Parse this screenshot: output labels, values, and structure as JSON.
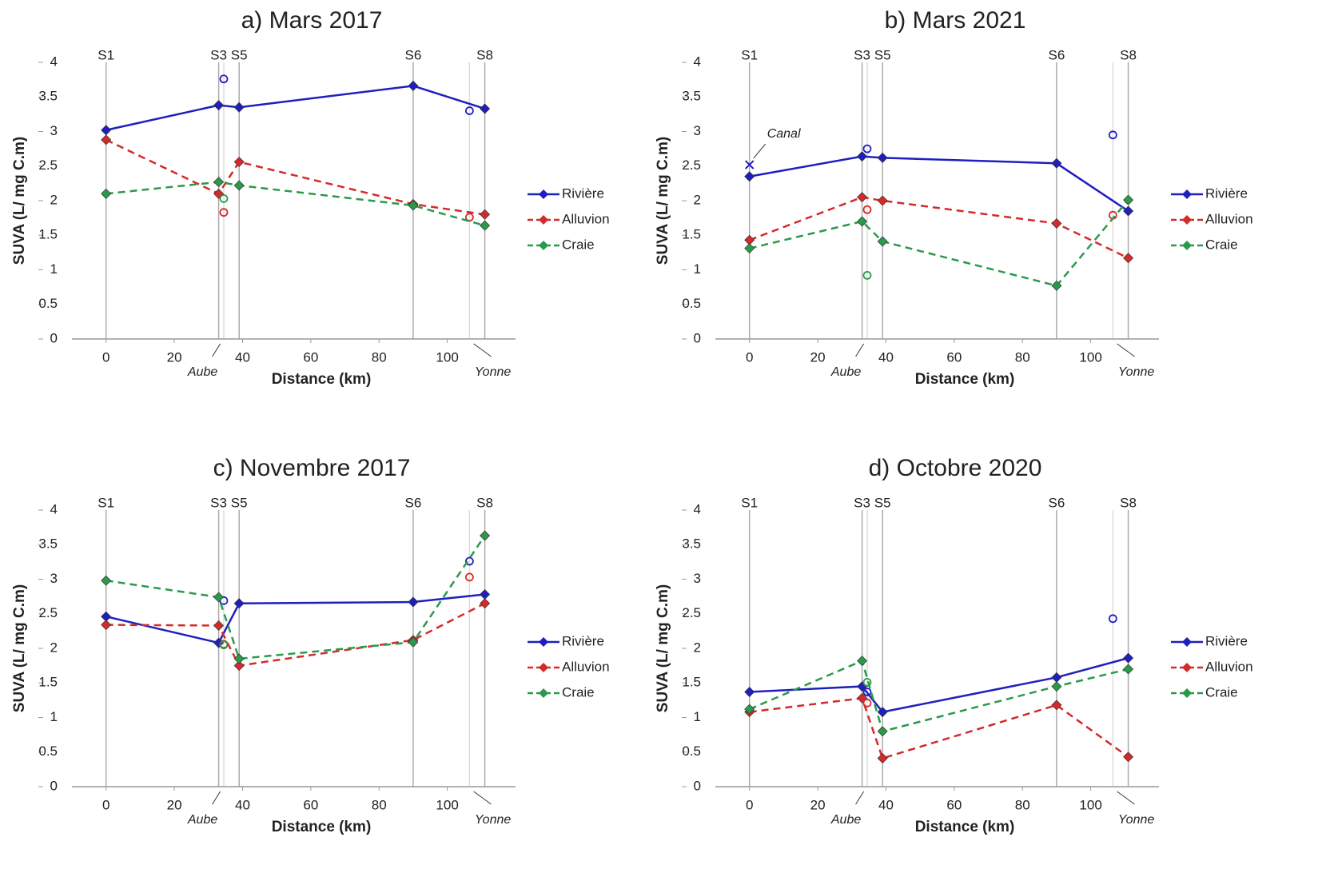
{
  "chart_data": [
    {
      "type": "line",
      "title": "a) Mars 2017",
      "xlabel": "Distance (km)",
      "ylabel": "SUVA  (L/ mg C.m)",
      "xlim": [
        -10,
        120
      ],
      "xticks": [
        0,
        20,
        40,
        60,
        80,
        100
      ],
      "ylim": [
        0,
        4
      ],
      "yticks": [
        0,
        0.5,
        1,
        1.5,
        2,
        2.5,
        3,
        3.5,
        4
      ],
      "stations": [
        "S1",
        "S3",
        "S5",
        "S6",
        "S8"
      ],
      "x": [
        0,
        33,
        39,
        90,
        111
      ],
      "annotations": [
        "Aube",
        "Yonne"
      ],
      "series": [
        {
          "name": "Rivière",
          "color": "#1f1fbf",
          "dashed": false,
          "values": [
            3.02,
            3.38,
            3.35,
            3.66,
            3.33
          ],
          "extra": {
            "x": [
              34.5,
              106.5
            ],
            "values": [
              3.76,
              3.3
            ]
          }
        },
        {
          "name": "Alluvion",
          "color": "#d42a2a",
          "dashed": true,
          "values": [
            2.88,
            2.1,
            2.56,
            1.95,
            1.8
          ],
          "extra": {
            "x": [
              34.5,
              106.5
            ],
            "values": [
              1.83,
              1.76
            ]
          }
        },
        {
          "name": "Craie",
          "color": "#2a9a4a",
          "dashed": true,
          "values": [
            2.1,
            2.27,
            2.22,
            1.93,
            1.64
          ],
          "extra": {
            "x": [
              34.5
            ],
            "values": [
              2.03
            ]
          }
        }
      ]
    },
    {
      "type": "line",
      "title": "b) Mars 2021",
      "xlabel": "Distance (km)",
      "ylabel": "SUVA  (L/ mg C.m)",
      "xlim": [
        -10,
        120
      ],
      "xticks": [
        0,
        20,
        40,
        60,
        80,
        100
      ],
      "ylim": [
        0,
        4
      ],
      "yticks": [
        0,
        0.5,
        1,
        1.5,
        2,
        2.5,
        3,
        3.5,
        4
      ],
      "stations": [
        "S1",
        "S3",
        "S5",
        "S6",
        "S8"
      ],
      "x": [
        0,
        33,
        39,
        90,
        111
      ],
      "annotations": [
        "Aube",
        "Yonne"
      ],
      "markers": [
        {
          "label": "Canal",
          "x": 0,
          "y": 2.52,
          "color": "#1f1fbf"
        }
      ],
      "series": [
        {
          "name": "Rivière",
          "color": "#1f1fbf",
          "dashed": false,
          "values": [
            2.35,
            2.64,
            2.62,
            2.54,
            1.85
          ],
          "extra": {
            "x": [
              34.5,
              106.5
            ],
            "values": [
              2.75,
              2.95
            ]
          }
        },
        {
          "name": "Alluvion",
          "color": "#d42a2a",
          "dashed": true,
          "values": [
            1.43,
            2.05,
            2.0,
            1.67,
            1.17
          ],
          "extra": {
            "x": [
              34.5,
              106.5
            ],
            "values": [
              1.87,
              1.79
            ]
          }
        },
        {
          "name": "Craie",
          "color": "#2a9a4a",
          "dashed": true,
          "values": [
            1.31,
            1.7,
            1.41,
            0.77,
            2.01
          ],
          "extra": {
            "x": [
              34.5
            ],
            "values": [
              0.92
            ]
          }
        }
      ]
    },
    {
      "type": "line",
      "title": "c) Novembre 2017",
      "xlabel": "Distance (km)",
      "ylabel": "SUVA  (L/ mg C.m)",
      "xlim": [
        -10,
        120
      ],
      "xticks": [
        0,
        20,
        40,
        60,
        80,
        100
      ],
      "ylim": [
        0,
        4
      ],
      "yticks": [
        0,
        0.5,
        1,
        1.5,
        2,
        2.5,
        3,
        3.5,
        4
      ],
      "stations": [
        "S1",
        "S3",
        "S5",
        "S6",
        "S8"
      ],
      "x": [
        0,
        33,
        39,
        90,
        111
      ],
      "annotations": [
        "Aube",
        "Yonne"
      ],
      "series": [
        {
          "name": "Rivière",
          "color": "#1f1fbf",
          "dashed": false,
          "values": [
            2.46,
            2.08,
            2.65,
            2.67,
            2.78
          ],
          "extra": {
            "x": [
              34.5,
              106.5
            ],
            "values": [
              2.69,
              3.26
            ]
          }
        },
        {
          "name": "Alluvion",
          "color": "#d42a2a",
          "dashed": true,
          "values": [
            2.34,
            2.33,
            1.75,
            2.12,
            2.65
          ],
          "extra": {
            "x": [
              34.5,
              106.5
            ],
            "values": [
              2.06,
              3.03
            ]
          }
        },
        {
          "name": "Craie",
          "color": "#2a9a4a",
          "dashed": true,
          "values": [
            2.98,
            2.74,
            1.85,
            2.09,
            3.63
          ],
          "extra": {
            "x": [
              34.5
            ],
            "values": [
              2.05
            ]
          }
        }
      ]
    },
    {
      "type": "line",
      "title": "d) Octobre 2020",
      "xlabel": "Distance (km)",
      "ylabel": "SUVA  (L/ mg C.m)",
      "xlim": [
        -10,
        120
      ],
      "xticks": [
        0,
        20,
        40,
        60,
        80,
        100
      ],
      "ylim": [
        0,
        4
      ],
      "yticks": [
        0,
        0.5,
        1,
        1.5,
        2,
        2.5,
        3,
        3.5,
        4
      ],
      "stations": [
        "S1",
        "S3",
        "S5",
        "S6",
        "S8"
      ],
      "x": [
        0,
        33,
        39,
        90,
        111
      ],
      "annotations": [
        "Aube",
        "Yonne"
      ],
      "series": [
        {
          "name": "Rivière",
          "color": "#1f1fbf",
          "dashed": false,
          "values": [
            1.37,
            1.45,
            1.08,
            1.58,
            1.86
          ],
          "extra": {
            "x": [
              34.5,
              106.5
            ],
            "values": [
              1.37,
              2.43
            ]
          }
        },
        {
          "name": "Alluvion",
          "color": "#d42a2a",
          "dashed": true,
          "values": [
            1.08,
            1.28,
            0.41,
            1.18,
            0.43
          ],
          "extra": {
            "x": [
              34.5
            ],
            "values": [
              1.21
            ]
          }
        },
        {
          "name": "Craie",
          "color": "#2a9a4a",
          "dashed": true,
          "values": [
            1.12,
            1.82,
            0.8,
            1.45,
            1.7
          ],
          "extra": {
            "x": [
              34.5
            ],
            "values": [
              1.51
            ]
          }
        }
      ]
    }
  ]
}
